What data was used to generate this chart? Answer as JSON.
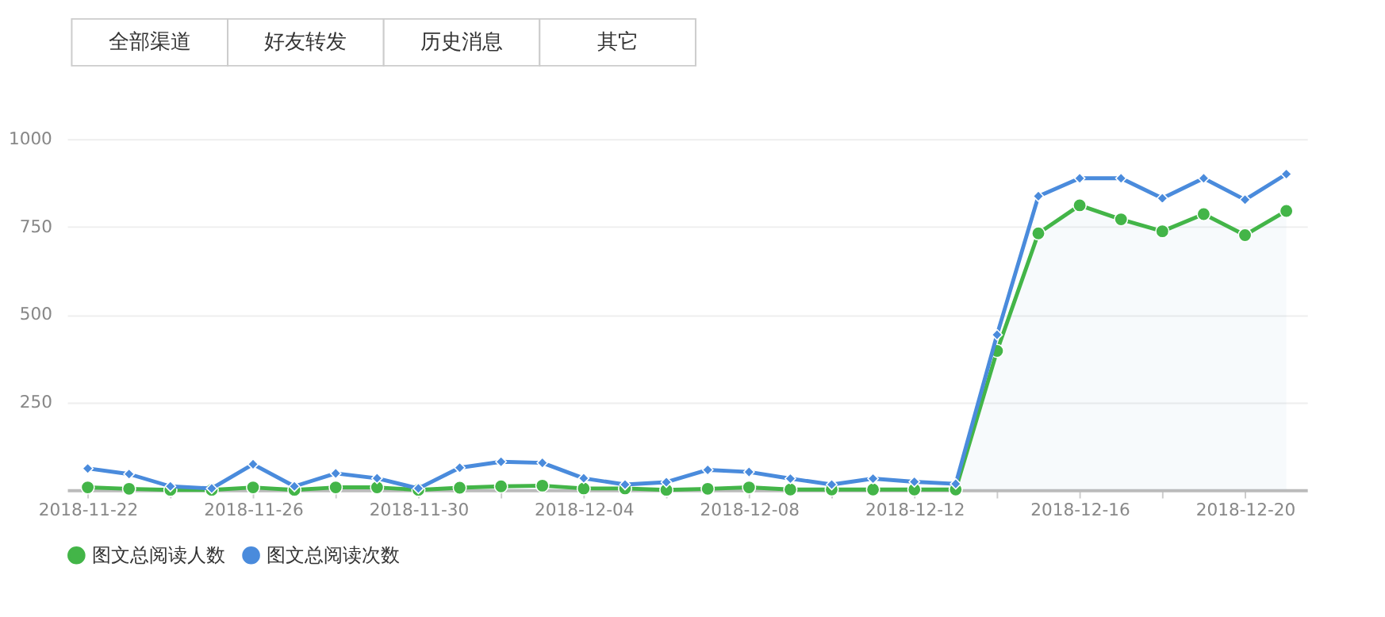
{
  "chart_data": {
    "type": "line",
    "annotations": [
      "全部渠道",
      "好友转发",
      "历史消息",
      "其它"
    ],
    "x": [
      "2018-11-22",
      "2018-11-23",
      "2018-11-24",
      "2018-11-25",
      "2018-11-26",
      "2018-11-27",
      "2018-11-28",
      "2018-11-29",
      "2018-11-30",
      "2018-12-01",
      "2018-12-02",
      "2018-12-03",
      "2018-12-04",
      "2018-12-05",
      "2018-12-06",
      "2018-12-07",
      "2018-12-08",
      "2018-12-09",
      "2018-12-10",
      "2018-12-11",
      "2018-12-12",
      "2018-12-13",
      "2018-12-14",
      "2018-12-15",
      "2018-12-16",
      "2018-12-17",
      "2018-12-18",
      "2018-12-19",
      "2018-12-20",
      "2018-12-21"
    ],
    "series": [
      {
        "name": "图文总阅读人数",
        "color": "#43b548",
        "type": "area",
        "marker": "circle",
        "values": [
          7,
          3,
          0,
          0,
          7,
          0,
          7,
          7,
          0,
          6,
          10,
          12,
          4,
          4,
          0,
          3,
          7,
          1,
          1,
          1,
          1,
          1,
          396,
          731,
          811,
          771,
          737,
          786,
          726,
          795
        ]
      },
      {
        "name": "图文总阅读次数",
        "color": "#4a8bdc",
        "marker": "diamond",
        "values": [
          61,
          45,
          10,
          4,
          73,
          10,
          47,
          33,
          4,
          63,
          80,
          77,
          33,
          15,
          22,
          57,
          51,
          32,
          15,
          32,
          23,
          17,
          442,
          837,
          888,
          888,
          831,
          888,
          827,
          900
        ]
      }
    ],
    "xlim": [
      "2018-11-21T12:00",
      "2018-12-21T12:00"
    ],
    "xticks": [
      {
        "value": "2018-11-22",
        "label": "2018-11-22"
      },
      {
        "value": "2018-11-24",
        "label": null
      },
      {
        "value": "2018-11-26",
        "label": "2018-11-26"
      },
      {
        "value": "2018-11-28",
        "label": null
      },
      {
        "value": "2018-11-30",
        "label": "2018-11-30"
      },
      {
        "value": "2018-12-02",
        "label": null
      },
      {
        "value": "2018-12-04",
        "label": "2018-12-04"
      },
      {
        "value": "2018-12-06",
        "label": null
      },
      {
        "value": "2018-12-08",
        "label": "2018-12-08"
      },
      {
        "value": "2018-12-10",
        "label": null
      },
      {
        "value": "2018-12-12",
        "label": "2018-12-12"
      },
      {
        "value": "2018-12-14",
        "label": null
      },
      {
        "value": "2018-12-16",
        "label": "2018-12-16"
      },
      {
        "value": "2018-12-18",
        "label": null
      },
      {
        "value": "2018-12-20",
        "label": "2018-12-20"
      }
    ],
    "ylim": [
      0,
      1000
    ],
    "yticks": [
      250,
      500,
      750,
      1000
    ],
    "grid": "y",
    "legend": "bottom"
  }
}
